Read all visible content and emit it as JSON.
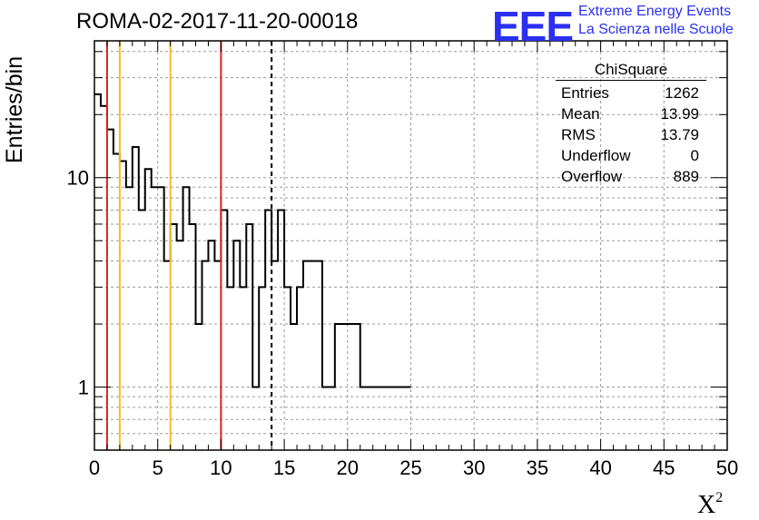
{
  "header": {
    "run_title": "ROMA-02-2017-11-20-00018",
    "logo_text": "EEE",
    "logo_line1": "Extreme Energy Events",
    "logo_line2": "La Scienza nelle Scuole",
    "logo_color": "#2a2ff0"
  },
  "stats_box": {
    "title": "ChiSquare",
    "rows": [
      {
        "label": "Entries",
        "value": "1262"
      },
      {
        "label": "Mean",
        "value": "13.99"
      },
      {
        "label": "RMS",
        "value": "13.79"
      },
      {
        "label": "Underflow",
        "value": "0"
      },
      {
        "label": "Overflow",
        "value": "889"
      }
    ]
  },
  "chart_data": {
    "type": "histogram",
    "title": "ROMA-02-2017-11-20-00018",
    "xlabel": "X",
    "xlabel_superscript": "2",
    "ylabel": "Entries/bin",
    "x_range": [
      0,
      50
    ],
    "y_range": [
      0.5,
      45
    ],
    "y_scale": "log",
    "bin_width": 0.5,
    "x_ticks": [
      0,
      5,
      10,
      15,
      20,
      25,
      30,
      35,
      40,
      45,
      50
    ],
    "y_ticks": [
      {
        "value": 1,
        "label": "1"
      },
      {
        "value": 10,
        "label": "10"
      }
    ],
    "grid": true,
    "values": [
      25,
      22,
      17,
      13,
      12,
      9,
      14,
      7,
      11,
      9,
      9,
      4,
      6,
      5,
      9,
      6,
      2,
      4,
      5,
      4,
      7,
      3,
      5,
      3,
      6,
      1,
      3,
      7,
      4,
      7,
      3,
      2,
      3,
      4,
      4,
      4,
      1,
      1,
      2,
      2,
      2,
      2,
      1,
      1,
      1,
      1,
      1,
      1,
      1,
      1
    ],
    "values_continued": [],
    "reference_lines": [
      {
        "x": 1,
        "color": "#e02020",
        "style": "solid"
      },
      {
        "x": 2,
        "color": "#f0c020",
        "style": "solid"
      },
      {
        "x": 6,
        "color": "#f0c020",
        "style": "solid"
      },
      {
        "x": 10,
        "color": "#e02020",
        "style": "solid"
      },
      {
        "x": 14,
        "color": "#000000",
        "style": "dashed"
      }
    ]
  }
}
